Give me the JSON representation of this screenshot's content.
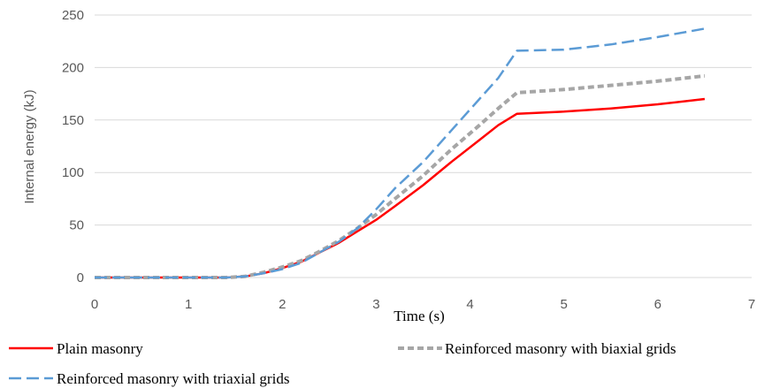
{
  "chart_data": {
    "type": "line",
    "title": "",
    "xlabel": "Time (s)",
    "ylabel": "Internal energy (kJ)",
    "xlim": [
      0,
      7
    ],
    "ylim": [
      0,
      250
    ],
    "x_ticks": [
      "0",
      "1",
      "2",
      "3",
      "4",
      "5",
      "6",
      "7"
    ],
    "y_ticks": [
      "0",
      "50",
      "100",
      "150",
      "200",
      "250"
    ],
    "grid": "horizontal",
    "legend_position": "bottom",
    "series": [
      {
        "name": "Plain masonry",
        "color": "#ff0000",
        "style": "solid",
        "points": [
          [
            0,
            0
          ],
          [
            1.4,
            0
          ],
          [
            1.6,
            1
          ],
          [
            1.8,
            4
          ],
          [
            2.0,
            9
          ],
          [
            2.2,
            15
          ],
          [
            2.4,
            24
          ],
          [
            2.6,
            33
          ],
          [
            2.8,
            44
          ],
          [
            3.0,
            55
          ],
          [
            3.2,
            68
          ],
          [
            3.5,
            88
          ],
          [
            3.8,
            110
          ],
          [
            4.1,
            131
          ],
          [
            4.3,
            145
          ],
          [
            4.5,
            156
          ],
          [
            5.0,
            158
          ],
          [
            5.5,
            161
          ],
          [
            6.0,
            165
          ],
          [
            6.5,
            170
          ]
        ]
      },
      {
        "name": "Reinforced masonry with biaxial grids",
        "color": "#a6a6a6",
        "style": "dashed",
        "points": [
          [
            0,
            0
          ],
          [
            1.4,
            0
          ],
          [
            1.6,
            1
          ],
          [
            1.8,
            5
          ],
          [
            2.0,
            10
          ],
          [
            2.2,
            16
          ],
          [
            2.4,
            25
          ],
          [
            2.6,
            35
          ],
          [
            2.8,
            47
          ],
          [
            3.0,
            60
          ],
          [
            3.2,
            75
          ],
          [
            3.5,
            97
          ],
          [
            3.8,
            122
          ],
          [
            4.1,
            145
          ],
          [
            4.3,
            161
          ],
          [
            4.5,
            176
          ],
          [
            5.0,
            179
          ],
          [
            5.5,
            183
          ],
          [
            6.0,
            187
          ],
          [
            6.5,
            192
          ]
        ]
      },
      {
        "name": "Reinforced masonry with triaxial grids",
        "color": "#5b9bd5",
        "style": "dashed",
        "points": [
          [
            0,
            0
          ],
          [
            1.4,
            0
          ],
          [
            1.6,
            1
          ],
          [
            1.8,
            4
          ],
          [
            2.0,
            8
          ],
          [
            2.2,
            14
          ],
          [
            2.4,
            24
          ],
          [
            2.6,
            34
          ],
          [
            2.8,
            47
          ],
          [
            3.0,
            65
          ],
          [
            3.2,
            85
          ],
          [
            3.5,
            110
          ],
          [
            3.8,
            140
          ],
          [
            4.1,
            170
          ],
          [
            4.3,
            190
          ],
          [
            4.5,
            216
          ],
          [
            5.0,
            217
          ],
          [
            5.5,
            222
          ],
          [
            6.0,
            229
          ],
          [
            6.5,
            237
          ]
        ]
      }
    ]
  }
}
